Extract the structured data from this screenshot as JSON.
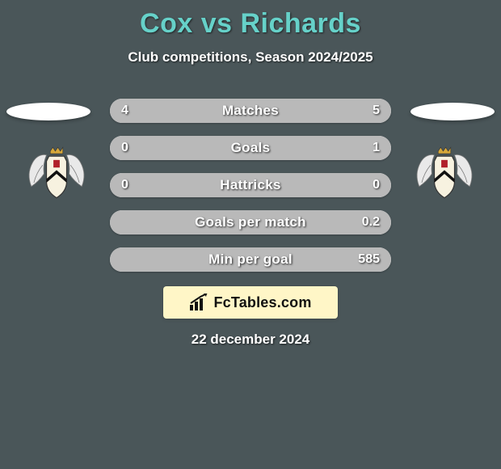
{
  "title": "Cox vs Richards",
  "title_color": "#66d1c9",
  "subtitle": "Club competitions, Season 2024/2025",
  "background_color": "#4a5659",
  "oval_color": "#ffffff",
  "crest": {
    "wing_fill": "#e9e9e9",
    "wing_stroke": "#7a7a7a",
    "shield_fill": "#f7f2e0",
    "shield_stroke": "#333333",
    "shield_chevron": "#111111",
    "accent_red": "#b1202a",
    "crown_fill": "#d7a83a"
  },
  "bars": {
    "track_left_color": "#ededed",
    "track_right_color": "#ededed",
    "fill_left_color": "#b9b9b9",
    "fill_right_color": "#b9b9b9",
    "label_fontsize": 17,
    "value_fontsize": 16,
    "rows": [
      {
        "label": "Matches",
        "left_val": "4",
        "right_val": "5",
        "left_pct": 44,
        "right_pct": 56
      },
      {
        "label": "Goals",
        "left_val": "0",
        "right_val": "1",
        "left_pct": 18,
        "right_pct": 82
      },
      {
        "label": "Hattricks",
        "left_val": "0",
        "right_val": "0",
        "left_pct": 50,
        "right_pct": 50
      },
      {
        "label": "Goals per match",
        "left_val": "",
        "right_val": "0.2",
        "left_pct": 32,
        "right_pct": 68
      },
      {
        "label": "Min per goal",
        "left_val": "",
        "right_val": "585",
        "left_pct": 38,
        "right_pct": 62
      }
    ]
  },
  "brand": {
    "box_bg": "#fff6c7",
    "text": "FcTables.com",
    "icon_color": "#111111"
  },
  "date": "22 december 2024"
}
